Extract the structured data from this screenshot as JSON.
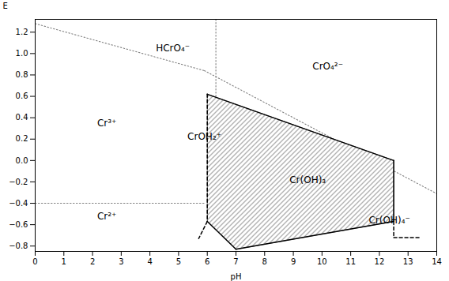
{
  "chart_data": {
    "type": "pourbaix",
    "xlabel": "pH",
    "ylabel": "E",
    "xlim": [
      0,
      14
    ],
    "ylim": [
      -0.85,
      1.32
    ],
    "xticks": [
      0,
      1,
      2,
      3,
      4,
      5,
      6,
      7,
      8,
      9,
      10,
      11,
      12,
      13,
      14
    ],
    "yticks": [
      {
        "value": -0.8,
        "label": "−0.8"
      },
      {
        "value": -0.6,
        "label": "−0.6"
      },
      {
        "value": -0.4,
        "label": "−0.4"
      },
      {
        "value": -0.2,
        "label": "−0.2"
      },
      {
        "value": 0.0,
        "label": "0.0"
      },
      {
        "value": 0.2,
        "label": "0.2"
      },
      {
        "value": 0.4,
        "label": "0.4"
      },
      {
        "value": 0.6,
        "label": "0.6"
      },
      {
        "value": 0.8,
        "label": "0.8"
      },
      {
        "value": 1.0,
        "label": "1.0"
      },
      {
        "value": 1.2,
        "label": "1.2"
      }
    ],
    "grid": false,
    "polygon": {
      "x": [
        6.0,
        12.5,
        12.5,
        7.0,
        6.0,
        6.0
      ],
      "y": [
        0.62,
        0.0,
        -0.57,
        -0.83,
        -0.57,
        0.62
      ]
    },
    "segments": [
      {
        "line_style": "dotted",
        "color": "gray",
        "x": [
          0,
          5.9
        ],
        "y": [
          1.28,
          0.84
        ]
      },
      {
        "line_style": "dotted",
        "color": "gray",
        "x": [
          5.9,
          14.0
        ],
        "y": [
          0.84,
          -0.31
        ]
      },
      {
        "line_style": "dotted",
        "color": "gray",
        "x": [
          6.3,
          6.3
        ],
        "y": [
          1.32,
          0.1
        ]
      },
      {
        "line_style": "dotted",
        "color": "gray",
        "x": [
          0,
          5.9
        ],
        "y": [
          -0.4,
          -0.4
        ]
      },
      {
        "line_style": "solid",
        "color": "black",
        "x": [
          6.0,
          12.5
        ],
        "y": [
          0.62,
          0.0
        ]
      },
      {
        "line_style": "solid",
        "color": "black",
        "x": [
          12.5,
          12.5
        ],
        "y": [
          0.0,
          -0.57
        ]
      },
      {
        "line_style": "solid",
        "color": "black",
        "x": [
          12.5,
          7.0
        ],
        "y": [
          -0.57,
          -0.83
        ]
      },
      {
        "line_style": "solid",
        "color": "black",
        "x": [
          7.0,
          6.0
        ],
        "y": [
          -0.83,
          -0.57
        ]
      },
      {
        "line_style": "dashed",
        "color": "black",
        "x": [
          6.0,
          6.0
        ],
        "y": [
          0.62,
          -0.57
        ]
      },
      {
        "line_style": "dashed",
        "color": "black",
        "x": [
          6.0,
          5.7
        ],
        "y": [
          -0.57,
          -0.73
        ]
      },
      {
        "line_style": "dashed",
        "color": "black",
        "x": [
          12.5,
          12.5
        ],
        "y": [
          -0.57,
          -0.72
        ]
      },
      {
        "line_style": "dashed",
        "color": "black",
        "x": [
          12.5,
          13.4
        ],
        "y": [
          -0.72,
          -0.72
        ]
      }
    ],
    "annotations": [
      {
        "text": "HCrO₄⁻",
        "x": 4.8,
        "y": 1.05,
        "align": "center"
      },
      {
        "text": "CrO₄²⁻",
        "x": 10.2,
        "y": 0.88,
        "align": "center"
      },
      {
        "text": "Cr³⁺",
        "x": 2.5,
        "y": 0.35,
        "align": "center"
      },
      {
        "text": "CrOH₂⁺",
        "x": 5.9,
        "y": 0.22,
        "align": "left"
      },
      {
        "text": "Cr²⁺",
        "x": 2.5,
        "y": -0.52,
        "align": "center"
      },
      {
        "text": "Cr(OH)₃",
        "x": 9.5,
        "y": -0.18,
        "align": "center"
      },
      {
        "text": "Cr(OH)₄⁻",
        "x": 12.35,
        "y": -0.56,
        "align": "left"
      }
    ]
  }
}
